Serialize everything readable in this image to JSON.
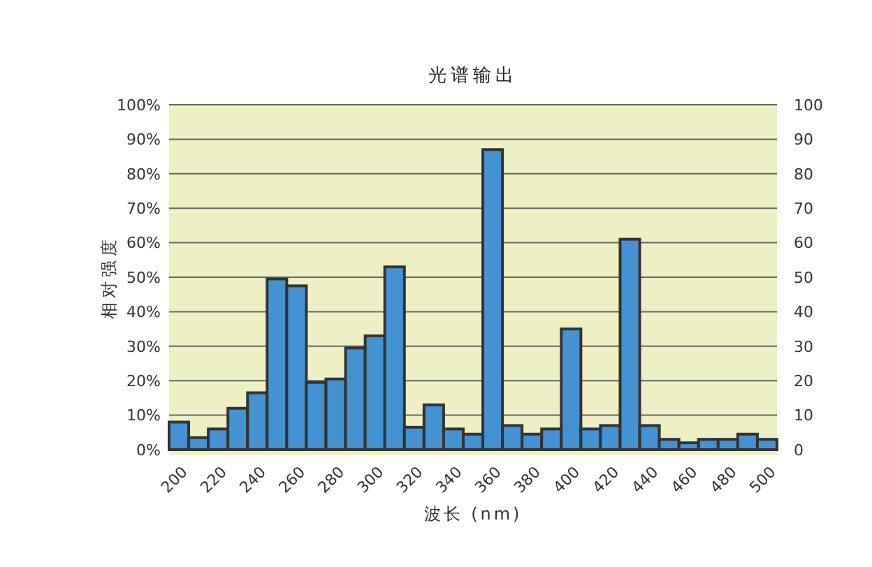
{
  "chart_data": {
    "type": "bar",
    "title": "光谱输出",
    "xlabel": "波长 (nm)",
    "ylabel": "相对强度",
    "categories": [
      "200",
      null,
      "220",
      null,
      "240",
      null,
      "260",
      null,
      "280",
      null,
      "300",
      null,
      "320",
      null,
      "340",
      null,
      "360",
      null,
      "380",
      null,
      "400",
      null,
      "420",
      null,
      "440",
      null,
      "460",
      null,
      "480",
      null,
      "500"
    ],
    "values": [
      8,
      3.5,
      6,
      12,
      16.5,
      49.5,
      47.5,
      19.5,
      20.5,
      29.5,
      33,
      53,
      6.5,
      13,
      6,
      4.5,
      87,
      7,
      4.5,
      6,
      35,
      6,
      7,
      61,
      7,
      3,
      2,
      3,
      3,
      4.5,
      3
    ],
    "color": "#4592d2",
    "ylim": [
      0,
      100
    ],
    "yticks": [
      {
        "value": 0,
        "label": "0%"
      },
      {
        "value": 10,
        "label": "10%"
      },
      {
        "value": 20,
        "label": "20%"
      },
      {
        "value": 30,
        "label": "30%"
      },
      {
        "value": 40,
        "label": "40%"
      },
      {
        "value": 50,
        "label": "50%"
      },
      {
        "value": 60,
        "label": "60%"
      },
      {
        "value": 70,
        "label": "70%"
      },
      {
        "value": 80,
        "label": "80%"
      },
      {
        "value": 90,
        "label": "90%"
      },
      {
        "value": 100,
        "label": "100%"
      }
    ],
    "y2lim": [
      0,
      100
    ],
    "y2ticks": [
      0,
      10,
      20,
      30,
      40,
      50,
      60,
      70,
      80,
      90,
      100
    ],
    "grid": "y"
  }
}
